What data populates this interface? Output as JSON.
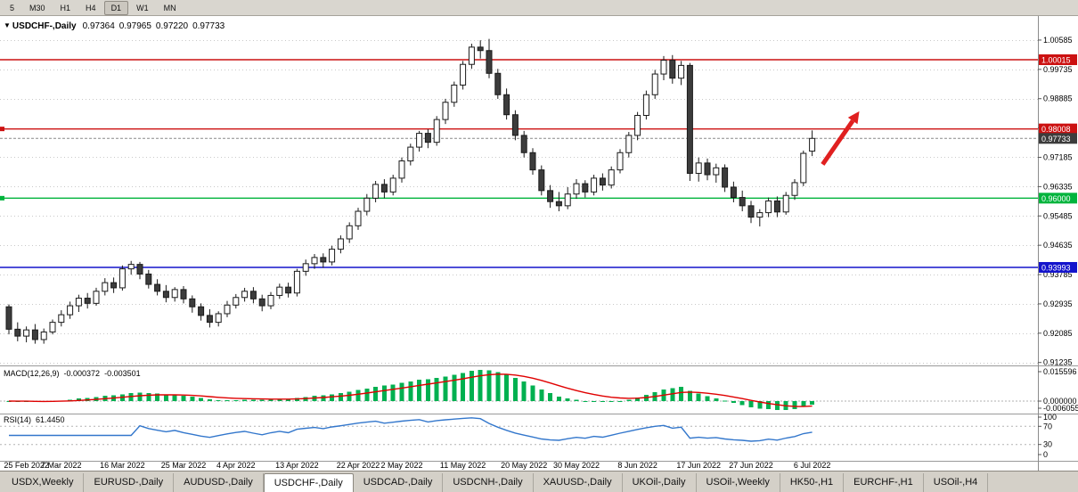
{
  "toolbar": {
    "timeframes": [
      "5",
      "M30",
      "H1",
      "H4",
      "D1",
      "W1",
      "MN"
    ]
  },
  "chart": {
    "header": {
      "symbol": "USDCHF-,Daily",
      "open": "0.97364",
      "high": "0.97965",
      "low": "0.97220",
      "close": "0.97733"
    },
    "current_price": "0.97733",
    "current_badge_color": "#3c3c3c",
    "candle_colors": {
      "up_fill": "#ffffff",
      "down_fill": "#3c3c3c",
      "outline": "#1a1a1a"
    },
    "price_axis": {
      "ticks": [
        "1.00585",
        "0.99735",
        "0.98885",
        "0.98035",
        "0.97185",
        "0.96335",
        "0.95485",
        "0.94635",
        "0.93785",
        "0.92935",
        "0.92085",
        "0.91235"
      ]
    },
    "hlines": [
      {
        "name": "resistance-upper",
        "price": 1.00015,
        "label": "1.00015",
        "color": "#cc1111",
        "anchor": false
      },
      {
        "name": "resistance-lower",
        "price": 0.98008,
        "label": "0.98008",
        "color": "#cc1111",
        "anchor": true
      },
      {
        "name": "support-green",
        "price": 0.96,
        "label": "0.96000",
        "color": "#00b43c",
        "anchor": true
      },
      {
        "name": "support-blue",
        "price": 0.93993,
        "label": "0.93993",
        "color": "#1414cc",
        "anchor": false
      }
    ],
    "annotations": {
      "arrow": {
        "from_bar": 93.2,
        "from_price": 0.9698,
        "to_bar": 97.4,
        "to_price": 0.9852,
        "color": "#e02020"
      }
    }
  },
  "macd": {
    "title": "MACD(12,26,9)",
    "value_main": "-0.000372",
    "value_signal": "-0.003501",
    "axis": [
      "0.015596",
      "0.000000",
      "-0.006055"
    ],
    "histogram_color": "#00b050",
    "signal_color": "#e00000"
  },
  "rsi": {
    "title": "RSI(14)",
    "value": "61.4450",
    "axis": [
      "100",
      "70",
      "30",
      "0"
    ],
    "levels": [
      70,
      30
    ],
    "line_color": "#3377cc"
  },
  "date_axis": {
    "labels": [
      "25 Feb 2022",
      "7 Mar 2022",
      "16 Mar 2022",
      "25 Mar 2022",
      "4 Apr 2022",
      "13 Apr 2022",
      "22 Apr 2022",
      "2 May 2022",
      "11 May 2022",
      "20 May 2022",
      "30 May 2022",
      "8 Jun 2022",
      "17 Jun 2022",
      "27 Jun 2022",
      "6 Jul 2022"
    ],
    "bar_indices": [
      2,
      6,
      13,
      20,
      26,
      33,
      40,
      45,
      52,
      59,
      65,
      72,
      79,
      85,
      92
    ]
  },
  "tabs": {
    "labels": [
      "USDX,Weekly",
      "EURUSD-,Daily",
      "AUDUSD-,Daily",
      "USDCHF-,Daily",
      "USDCAD-,Daily",
      "USDCNH-,Daily",
      "XAUUSD-,Daily",
      "UKOil-,Daily",
      "USOil-,Weekly",
      "HK50-,H1",
      "EURCHF-,H1",
      "USOil-,H4"
    ],
    "active_index": 3
  },
  "chart_data": {
    "type": "candlestick",
    "symbol": "USDCHF",
    "timeframe": "Daily",
    "x_range": "25 Feb 2022 - 6 Jul 2022",
    "ohlc_displayed": [
      0.97364,
      0.97965,
      0.9722,
      0.97733
    ],
    "horizontal_lines": [
      1.00015,
      0.98008,
      0.96,
      0.93993
    ],
    "indicators": {
      "macd": [
        -0.000372,
        -0.003501
      ],
      "rsi": 61.445
    },
    "candles": [
      [
        0.9285,
        0.9292,
        0.9205,
        0.922
      ],
      [
        0.922,
        0.924,
        0.9185,
        0.92
      ],
      [
        0.92,
        0.9228,
        0.9182,
        0.9218
      ],
      [
        0.9218,
        0.9235,
        0.9178,
        0.919
      ],
      [
        0.919,
        0.9222,
        0.9178,
        0.9212
      ],
      [
        0.9212,
        0.9248,
        0.9205,
        0.924
      ],
      [
        0.924,
        0.9275,
        0.9228,
        0.9262
      ],
      [
        0.9262,
        0.93,
        0.925,
        0.9288
      ],
      [
        0.9288,
        0.932,
        0.927,
        0.931
      ],
      [
        0.931,
        0.9325,
        0.928,
        0.9295
      ],
      [
        0.9295,
        0.934,
        0.9288,
        0.933
      ],
      [
        0.933,
        0.9368,
        0.9318,
        0.9355
      ],
      [
        0.9355,
        0.937,
        0.9325,
        0.934
      ],
      [
        0.934,
        0.9405,
        0.9332,
        0.9395
      ],
      [
        0.9395,
        0.9418,
        0.9378,
        0.9408
      ],
      [
        0.9408,
        0.9415,
        0.9365,
        0.938
      ],
      [
        0.938,
        0.9392,
        0.9338,
        0.935
      ],
      [
        0.935,
        0.9365,
        0.9318,
        0.933
      ],
      [
        0.933,
        0.9348,
        0.9298,
        0.9312
      ],
      [
        0.9312,
        0.9342,
        0.93,
        0.9335
      ],
      [
        0.9335,
        0.9345,
        0.9295,
        0.9308
      ],
      [
        0.9308,
        0.9318,
        0.9268,
        0.9285
      ],
      [
        0.9285,
        0.9295,
        0.9245,
        0.926
      ],
      [
        0.926,
        0.9278,
        0.9225,
        0.924
      ],
      [
        0.924,
        0.9272,
        0.9228,
        0.9265
      ],
      [
        0.9265,
        0.9302,
        0.9255,
        0.929
      ],
      [
        0.929,
        0.9322,
        0.928,
        0.9312
      ],
      [
        0.9312,
        0.934,
        0.93,
        0.933
      ],
      [
        0.933,
        0.9342,
        0.9295,
        0.9308
      ],
      [
        0.9308,
        0.932,
        0.9272,
        0.9288
      ],
      [
        0.9288,
        0.9328,
        0.9278,
        0.9318
      ],
      [
        0.9318,
        0.9352,
        0.9308,
        0.9342
      ],
      [
        0.9342,
        0.9355,
        0.9312,
        0.9325
      ],
      [
        0.9325,
        0.9395,
        0.9315,
        0.9388
      ],
      [
        0.9388,
        0.9422,
        0.9375,
        0.941
      ],
      [
        0.941,
        0.9438,
        0.9395,
        0.9428
      ],
      [
        0.9428,
        0.944,
        0.9398,
        0.9415
      ],
      [
        0.9415,
        0.9462,
        0.9405,
        0.9452
      ],
      [
        0.9452,
        0.9492,
        0.944,
        0.9482
      ],
      [
        0.9482,
        0.953,
        0.947,
        0.952
      ],
      [
        0.952,
        0.9572,
        0.9508,
        0.9562
      ],
      [
        0.9562,
        0.9612,
        0.955,
        0.96
      ],
      [
        0.96,
        0.965,
        0.9588,
        0.964
      ],
      [
        0.964,
        0.9655,
        0.96,
        0.9618
      ],
      [
        0.9618,
        0.9668,
        0.9608,
        0.9658
      ],
      [
        0.9658,
        0.9718,
        0.9645,
        0.9708
      ],
      [
        0.9708,
        0.9758,
        0.9695,
        0.9748
      ],
      [
        0.9748,
        0.9795,
        0.9735,
        0.9788
      ],
      [
        0.9788,
        0.98,
        0.9745,
        0.9762
      ],
      [
        0.9762,
        0.9838,
        0.9752,
        0.9828
      ],
      [
        0.9828,
        0.9888,
        0.9815,
        0.9878
      ],
      [
        0.9878,
        0.9938,
        0.9865,
        0.9928
      ],
      [
        0.9928,
        0.9998,
        0.9915,
        0.9988
      ],
      [
        0.9988,
        1.0048,
        0.9975,
        1.0038
      ],
      [
        1.0038,
        1.0058,
        1.0005,
        1.0028
      ],
      [
        1.0028,
        1.0062,
        0.9948,
        0.9962
      ],
      [
        0.9962,
        0.9975,
        0.9888,
        0.99
      ],
      [
        0.99,
        0.9918,
        0.9828,
        0.9842
      ],
      [
        0.9842,
        0.9855,
        0.9768,
        0.9782
      ],
      [
        0.9782,
        0.9795,
        0.9718,
        0.9732
      ],
      [
        0.9732,
        0.9745,
        0.9668,
        0.9682
      ],
      [
        0.9682,
        0.9695,
        0.9608,
        0.9622
      ],
      [
        0.9622,
        0.9638,
        0.9572,
        0.959
      ],
      [
        0.959,
        0.9618,
        0.9562,
        0.9578
      ],
      [
        0.9578,
        0.9632,
        0.9568,
        0.9612
      ],
      [
        0.9612,
        0.9655,
        0.9598,
        0.9642
      ],
      [
        0.9642,
        0.9652,
        0.9602,
        0.9618
      ],
      [
        0.9618,
        0.9668,
        0.9608,
        0.9658
      ],
      [
        0.9658,
        0.9672,
        0.9622,
        0.9638
      ],
      [
        0.9638,
        0.9692,
        0.9628,
        0.9682
      ],
      [
        0.9682,
        0.9742,
        0.9672,
        0.9732
      ],
      [
        0.9732,
        0.9792,
        0.9718,
        0.9782
      ],
      [
        0.9782,
        0.985,
        0.9768,
        0.984
      ],
      [
        0.984,
        0.9912,
        0.9828,
        0.99
      ],
      [
        0.99,
        0.9972,
        0.9888,
        0.996
      ],
      [
        0.996,
        1.0012,
        0.9942,
        1.0
      ],
      [
        1.0,
        1.0015,
        0.9932,
        0.9948
      ],
      [
        0.9948,
        0.9998,
        0.9928,
        0.9985
      ],
      [
        0.9985,
        0.9992,
        0.965,
        0.9672
      ],
      [
        0.9672,
        0.9718,
        0.9648,
        0.9702
      ],
      [
        0.9702,
        0.9715,
        0.9652,
        0.9668
      ],
      [
        0.9668,
        0.97,
        0.9645,
        0.9688
      ],
      [
        0.9688,
        0.9698,
        0.9618,
        0.9632
      ],
      [
        0.9632,
        0.9648,
        0.9588,
        0.9602
      ],
      [
        0.9602,
        0.9622,
        0.9562,
        0.9578
      ],
      [
        0.9578,
        0.9592,
        0.9528,
        0.9545
      ],
      [
        0.9545,
        0.9568,
        0.9518,
        0.9558
      ],
      [
        0.9558,
        0.9602,
        0.9545,
        0.9592
      ],
      [
        0.9592,
        0.9605,
        0.9545,
        0.956
      ],
      [
        0.956,
        0.9618,
        0.9552,
        0.9608
      ],
      [
        0.9608,
        0.9655,
        0.9595,
        0.9645
      ],
      [
        0.9645,
        0.9738,
        0.9635,
        0.973
      ],
      [
        0.97364,
        0.97965,
        0.9722,
        0.97733
      ]
    ]
  }
}
